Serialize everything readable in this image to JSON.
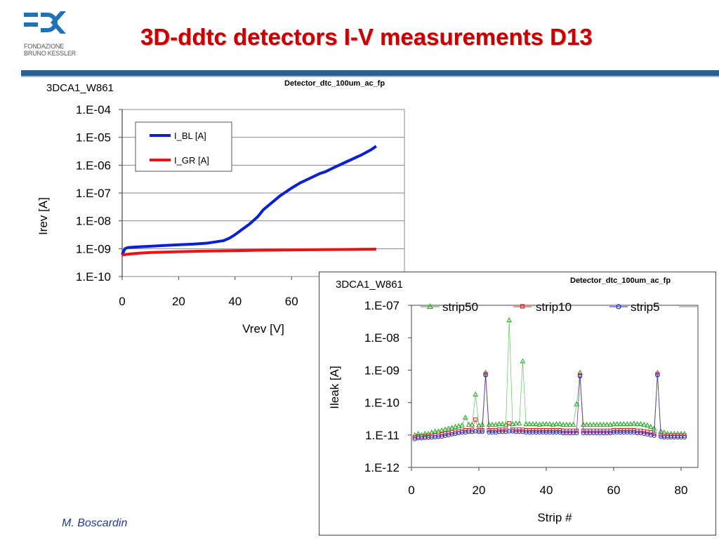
{
  "header": {
    "title": "3D-ddtc detectors I-V measurements D13",
    "logo_text": "F⊃K",
    "logo_sub_line1": "FONDAZIONE",
    "logo_sub_line2": "BRUNO KESSLER"
  },
  "footer": {
    "author": "M. Boscardin"
  },
  "colors": {
    "title": "#cc0000",
    "header_rule": "#2c5f8f",
    "author": "#1f3a9e",
    "logo_blue": "#1e73b8"
  },
  "chart_data": [
    {
      "type": "line",
      "sample_label": "3DCA1_W861",
      "title": "Detector_dtc_100um_ac_fp",
      "xlabel": "Vrev [V]",
      "ylabel": "Irev [A]",
      "xlim": [
        0,
        100
      ],
      "ylim_log10": [
        -10,
        -4
      ],
      "y_scale": "log",
      "xticks": [
        "0",
        "20",
        "40",
        "60"
      ],
      "yticks": [
        "1.E-04",
        "1.E-05",
        "1.E-06",
        "1.E-07",
        "1.E-08",
        "1.E-09",
        "1.E-10"
      ],
      "legend_position": "top-left",
      "series": [
        {
          "name": "I_BL [A]",
          "color": "#0a1fd8",
          "x": [
            0,
            0.5,
            1,
            2,
            5,
            10,
            15,
            20,
            25,
            30,
            33,
            36,
            38,
            40,
            42,
            45,
            48,
            50,
            53,
            56,
            60,
            63,
            66,
            70,
            72,
            75,
            80,
            85,
            88,
            90
          ],
          "y": [
            6e-10,
            8e-10,
            1e-09,
            1.1e-09,
            1.15e-09,
            1.22e-09,
            1.3e-09,
            1.38e-09,
            1.45e-09,
            1.58e-09,
            1.75e-09,
            1.95e-09,
            2.4e-09,
            3.2e-09,
            4.5e-09,
            7.5e-09,
            1.4e-08,
            2.5e-08,
            4.5e-08,
            8e-08,
            1.5e-07,
            2.3e-07,
            3.2e-07,
            5e-07,
            5.8e-07,
            8.2e-07,
            1.4e-06,
            2.4e-06,
            3.5e-06,
            4.8e-06
          ]
        },
        {
          "name": "I_GR [A]",
          "color": "#ee1111",
          "x": [
            0,
            2,
            5,
            10,
            20,
            30,
            40,
            50,
            60,
            70,
            80,
            90
          ],
          "y": [
            6e-10,
            6.3e-10,
            6.8e-10,
            7.3e-10,
            7.8e-10,
            8.2e-10,
            8.5e-10,
            8.8e-10,
            9e-10,
            9.2e-10,
            9.4e-10,
            9.6e-10
          ]
        }
      ]
    },
    {
      "type": "scatter",
      "sample_label": "3DCA1_W861",
      "title": "Detector_dtc_100um_ac_fp",
      "xlabel": "Strip #",
      "ylabel": "Ileak [A]",
      "xlim": [
        0,
        85
      ],
      "ylim_log10": [
        -12,
        -7
      ],
      "y_scale": "log",
      "xticks": [
        "0",
        "20",
        "40",
        "60",
        "80"
      ],
      "yticks": [
        "1.E-07",
        "1.E-08",
        "1.E-09",
        "1.E-10",
        "1.E-11",
        "1.E-12"
      ],
      "legend_position": "top",
      "series": [
        {
          "name": "strip50",
          "color": "#22aa22",
          "marker": "triangle",
          "x": [
            1,
            2,
            3,
            4,
            5,
            6,
            7,
            8,
            9,
            10,
            11,
            12,
            13,
            14,
            15,
            16,
            17,
            18,
            19,
            20,
            21,
            22,
            23,
            24,
            25,
            26,
            27,
            28,
            29,
            30,
            31,
            32,
            33,
            34,
            35,
            36,
            37,
            38,
            39,
            40,
            41,
            42,
            43,
            44,
            45,
            46,
            47,
            48,
            49,
            50,
            51,
            52,
            53,
            54,
            55,
            56,
            57,
            58,
            59,
            60,
            61,
            62,
            63,
            64,
            65,
            66,
            67,
            68,
            69,
            70,
            71,
            72,
            73,
            74,
            75,
            76,
            77,
            78,
            79,
            80,
            81
          ],
          "y": [
            1e-11,
            1.1e-11,
            1e-11,
            1.1e-11,
            1.1e-11,
            1.2e-11,
            1.3e-11,
            1.3e-11,
            1.4e-11,
            1.5e-11,
            1.6e-11,
            1.7e-11,
            1.8e-11,
            1.9e-11,
            2e-11,
            3.5e-11,
            2.1e-11,
            2.1e-11,
            1.8e-10,
            2e-11,
            2.1e-11,
            8.5e-10,
            2.1e-11,
            2.1e-11,
            2.1e-11,
            2.2e-11,
            2.2e-11,
            2.1e-11,
            3.5e-08,
            2.2e-11,
            2.3e-11,
            2.3e-11,
            1.9e-09,
            2.2e-11,
            2.2e-11,
            2.2e-11,
            2.2e-11,
            2.1e-11,
            2.2e-11,
            2.2e-11,
            2.2e-11,
            2.1e-11,
            2.2e-11,
            2.2e-11,
            2.1e-11,
            2.1e-11,
            2.1e-11,
            2.1e-11,
            9e-11,
            8.5e-10,
            2.1e-11,
            2.1e-11,
            2.1e-11,
            2.1e-11,
            2.1e-11,
            2.1e-11,
            2.1e-11,
            2.1e-11,
            2.1e-11,
            2.2e-11,
            2.2e-11,
            2.2e-11,
            2.2e-11,
            2.2e-11,
            2.2e-11,
            2.3e-11,
            2.2e-11,
            2.2e-11,
            2.1e-11,
            2e-11,
            1.8e-11,
            1.6e-11,
            8.5e-10,
            1.3e-11,
            1.2e-11,
            1.1e-11,
            1.1e-11,
            1.1e-11,
            1.1e-11,
            1.1e-11,
            1.1e-11
          ]
        },
        {
          "name": "strip10",
          "color": "#dd2222",
          "marker": "square",
          "x": [
            1,
            2,
            3,
            4,
            5,
            6,
            7,
            8,
            9,
            10,
            11,
            12,
            13,
            14,
            15,
            16,
            17,
            18,
            19,
            20,
            21,
            22,
            23,
            24,
            25,
            26,
            27,
            28,
            29,
            30,
            31,
            32,
            33,
            34,
            35,
            36,
            37,
            38,
            39,
            40,
            41,
            42,
            43,
            44,
            45,
            46,
            47,
            48,
            49,
            50,
            51,
            52,
            53,
            54,
            55,
            56,
            57,
            58,
            59,
            60,
            61,
            62,
            63,
            64,
            65,
            66,
            67,
            68,
            69,
            70,
            71,
            72,
            73,
            74,
            75,
            76,
            77,
            78,
            79,
            80,
            81
          ],
          "y": [
            8.5e-12,
            9e-12,
            9e-12,
            9.2e-12,
            9.3e-12,
            9.5e-12,
            9.7e-12,
            1e-11,
            1.05e-11,
            1.1e-11,
            1.15e-11,
            1.2e-11,
            1.25e-11,
            1.3e-11,
            1.35e-11,
            1.4e-11,
            1.4e-11,
            1.45e-11,
            3e-11,
            1.4e-11,
            1.4e-11,
            7.5e-10,
            1.4e-11,
            1.4e-11,
            1.4e-11,
            1.45e-11,
            1.45e-11,
            1.45e-11,
            2.3e-11,
            1.45e-11,
            1.45e-11,
            1.45e-11,
            1.45e-11,
            1.4e-11,
            1.4e-11,
            1.4e-11,
            1.4e-11,
            1.4e-11,
            1.4e-11,
            1.4e-11,
            1.4e-11,
            1.4e-11,
            1.4e-11,
            1.4e-11,
            1.35e-11,
            1.35e-11,
            1.35e-11,
            1.35e-11,
            1.35e-11,
            7e-10,
            1.35e-11,
            1.35e-11,
            1.35e-11,
            1.35e-11,
            1.35e-11,
            1.35e-11,
            1.35e-11,
            1.35e-11,
            1.35e-11,
            1.4e-11,
            1.4e-11,
            1.4e-11,
            1.4e-11,
            1.4e-11,
            1.4e-11,
            1.4e-11,
            1.35e-11,
            1.35e-11,
            1.3e-11,
            1.25e-11,
            1.2e-11,
            1.1e-11,
            7.5e-10,
            1e-11,
            9.5e-12,
            9.5e-12,
            9.5e-12,
            9.5e-12,
            9.5e-12,
            9.5e-12,
            9.5e-12
          ]
        },
        {
          "name": "strip5",
          "color": "#2222cc",
          "marker": "circle",
          "x": [
            1,
            2,
            3,
            4,
            5,
            6,
            7,
            8,
            9,
            10,
            11,
            12,
            13,
            14,
            15,
            16,
            17,
            18,
            19,
            20,
            21,
            22,
            23,
            24,
            25,
            26,
            27,
            28,
            29,
            30,
            31,
            32,
            33,
            34,
            35,
            36,
            37,
            38,
            39,
            40,
            41,
            42,
            43,
            44,
            45,
            46,
            47,
            48,
            49,
            50,
            51,
            52,
            53,
            54,
            55,
            56,
            57,
            58,
            59,
            60,
            61,
            62,
            63,
            64,
            65,
            66,
            67,
            68,
            69,
            70,
            71,
            72,
            73,
            74,
            75,
            76,
            77,
            78,
            79,
            80,
            81
          ],
          "y": [
            7.5e-12,
            8e-12,
            8e-12,
            8.2e-12,
            8.3e-12,
            8.4e-12,
            8.6e-12,
            8.8e-12,
            9e-12,
            9.5e-12,
            1e-11,
            1.05e-11,
            1.1e-11,
            1.15e-11,
            1.2e-11,
            1.2e-11,
            1.25e-11,
            1.25e-11,
            1.3e-11,
            1.25e-11,
            1.25e-11,
            7e-10,
            1.2e-11,
            1.2e-11,
            1.2e-11,
            1.25e-11,
            1.25e-11,
            1.25e-11,
            1.3e-11,
            1.3e-11,
            1.25e-11,
            1.25e-11,
            1.25e-11,
            1.2e-11,
            1.2e-11,
            1.2e-11,
            1.2e-11,
            1.2e-11,
            1.2e-11,
            1.2e-11,
            1.2e-11,
            1.2e-11,
            1.2e-11,
            1.2e-11,
            1.15e-11,
            1.15e-11,
            1.15e-11,
            1.15e-11,
            1.15e-11,
            6.5e-10,
            1.15e-11,
            1.15e-11,
            1.15e-11,
            1.15e-11,
            1.15e-11,
            1.15e-11,
            1.15e-11,
            1.15e-11,
            1.15e-11,
            1.2e-11,
            1.2e-11,
            1.2e-11,
            1.2e-11,
            1.2e-11,
            1.2e-11,
            1.2e-11,
            1.15e-11,
            1.15e-11,
            1.1e-11,
            1.05e-11,
            1e-11,
            9.5e-12,
            7e-10,
            8.8e-12,
            8.5e-12,
            8.5e-12,
            8.5e-12,
            8.5e-12,
            8.5e-12,
            8.5e-12,
            8.5e-12
          ]
        }
      ]
    }
  ]
}
